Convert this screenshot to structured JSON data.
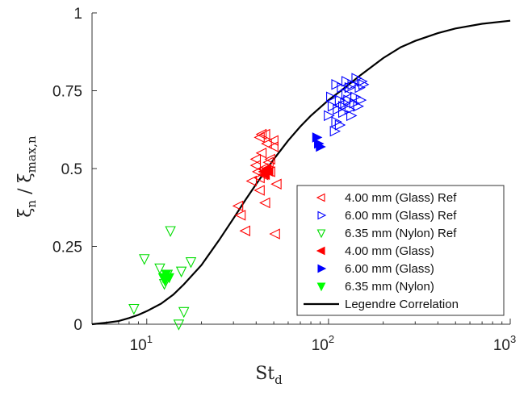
{
  "chart_data": {
    "type": "scatter",
    "xscale": "log",
    "xlim": [
      5,
      1000
    ],
    "ylim": [
      0,
      1
    ],
    "grid": false,
    "legend_position": "bottom-right",
    "xlabel": {
      "main": "St",
      "sub": "d"
    },
    "ylabel": {
      "a": "ξ",
      "a_sub": "n",
      "slash": " / ",
      "b": "ξ",
      "b_sub": "max,n"
    },
    "xticks": [
      {
        "value": 10,
        "base": "10",
        "exp": "1"
      },
      {
        "value": 100,
        "base": "10",
        "exp": "2"
      },
      {
        "value": 1000,
        "base": "10",
        "exp": "3"
      }
    ],
    "yticks": [
      {
        "value": 0,
        "label": "0"
      },
      {
        "value": 0.25,
        "label": "0.25"
      },
      {
        "value": 0.5,
        "label": "0.5"
      },
      {
        "value": 0.75,
        "label": "0.75"
      },
      {
        "value": 1,
        "label": "1"
      }
    ],
    "series": [
      {
        "name": "4.00 mm (Glass) Ref",
        "marker": "triangle-left-open",
        "color": "#ff0000",
        "points": [
          [
            32,
            0.38
          ],
          [
            33,
            0.35
          ],
          [
            35,
            0.3
          ],
          [
            38,
            0.46
          ],
          [
            40,
            0.53
          ],
          [
            40,
            0.51
          ],
          [
            41,
            0.49
          ],
          [
            42,
            0.43
          ],
          [
            42,
            0.6
          ],
          [
            42,
            0.47
          ],
          [
            43,
            0.61
          ],
          [
            43,
            0.55
          ],
          [
            44,
            0.48
          ],
          [
            44,
            0.5
          ],
          [
            45,
            0.39
          ],
          [
            45,
            0.61
          ],
          [
            46,
            0.58
          ],
          [
            47,
            0.52
          ],
          [
            48,
            0.49
          ],
          [
            48,
            0.53
          ],
          [
            50,
            0.57
          ],
          [
            50,
            0.59
          ],
          [
            51,
            0.29
          ],
          [
            52,
            0.45
          ]
        ]
      },
      {
        "name": "6.00 mm (Glass) Ref",
        "marker": "triangle-right-open",
        "color": "#0000ff",
        "points": [
          [
            100,
            0.67
          ],
          [
            103,
            0.73
          ],
          [
            105,
            0.7
          ],
          [
            108,
            0.62
          ],
          [
            110,
            0.77
          ],
          [
            110,
            0.65
          ],
          [
            112,
            0.69
          ],
          [
            115,
            0.72
          ],
          [
            115,
            0.64
          ],
          [
            118,
            0.76
          ],
          [
            120,
            0.7
          ],
          [
            120,
            0.68
          ],
          [
            123,
            0.71
          ],
          [
            125,
            0.78
          ],
          [
            125,
            0.74
          ],
          [
            128,
            0.72
          ],
          [
            130,
            0.69
          ],
          [
            130,
            0.76
          ],
          [
            133,
            0.67
          ],
          [
            135,
            0.77
          ],
          [
            138,
            0.71
          ],
          [
            140,
            0.73
          ],
          [
            142,
            0.79
          ],
          [
            145,
            0.7
          ],
          [
            148,
            0.76
          ],
          [
            150,
            0.72
          ],
          [
            152,
            0.78
          ],
          [
            155,
            0.77
          ]
        ]
      },
      {
        "name": "6.35 mm (Nylon) Ref",
        "marker": "triangle-down-open",
        "color": "#00dd00",
        "points": [
          [
            8.5,
            0.05
          ],
          [
            9.7,
            0.21
          ],
          [
            11.8,
            0.18
          ],
          [
            12.5,
            0.13
          ],
          [
            13.5,
            0.3
          ],
          [
            15.0,
            0.0
          ],
          [
            15.5,
            0.17
          ],
          [
            16.0,
            0.04
          ],
          [
            17.5,
            0.2
          ],
          [
            13.0,
            0.16
          ]
        ]
      },
      {
        "name": "4.00 mm (Glass)",
        "marker": "triangle-left-filled",
        "color": "#ff0000",
        "points": [
          [
            44,
            0.49
          ],
          [
            45,
            0.48
          ],
          [
            46,
            0.5
          ],
          [
            47,
            0.49
          ]
        ]
      },
      {
        "name": "6.00 mm (Glass)",
        "marker": "triangle-right-filled",
        "color": "#0000ff",
        "points": [
          [
            86,
            0.6
          ],
          [
            88,
            0.58
          ],
          [
            90,
            0.57
          ]
        ]
      },
      {
        "name": "6.35 mm (Nylon)",
        "marker": "triangle-down-filled",
        "color": "#00ff00",
        "points": [
          [
            12.3,
            0.15
          ],
          [
            12.8,
            0.16
          ],
          [
            13.3,
            0.15
          ],
          [
            12.6,
            0.14
          ]
        ]
      },
      {
        "name": "Legendre Correlation",
        "marker": "line",
        "color": "#000000",
        "points": [
          [
            5,
            0.0
          ],
          [
            6,
            0.005
          ],
          [
            7,
            0.01
          ],
          [
            8,
            0.02
          ],
          [
            9,
            0.03
          ],
          [
            10,
            0.042
          ],
          [
            12,
            0.066
          ],
          [
            14,
            0.095
          ],
          [
            16,
            0.128
          ],
          [
            20,
            0.19
          ],
          [
            25,
            0.27
          ],
          [
            30,
            0.34
          ],
          [
            35,
            0.4
          ],
          [
            40,
            0.45
          ],
          [
            50,
            0.53
          ],
          [
            60,
            0.59
          ],
          [
            70,
            0.635
          ],
          [
            80,
            0.67
          ],
          [
            100,
            0.72
          ],
          [
            120,
            0.755
          ],
          [
            150,
            0.8
          ],
          [
            200,
            0.855
          ],
          [
            250,
            0.89
          ],
          [
            300,
            0.91
          ],
          [
            400,
            0.935
          ],
          [
            500,
            0.95
          ],
          [
            700,
            0.965
          ],
          [
            1000,
            0.975
          ]
        ]
      }
    ]
  }
}
